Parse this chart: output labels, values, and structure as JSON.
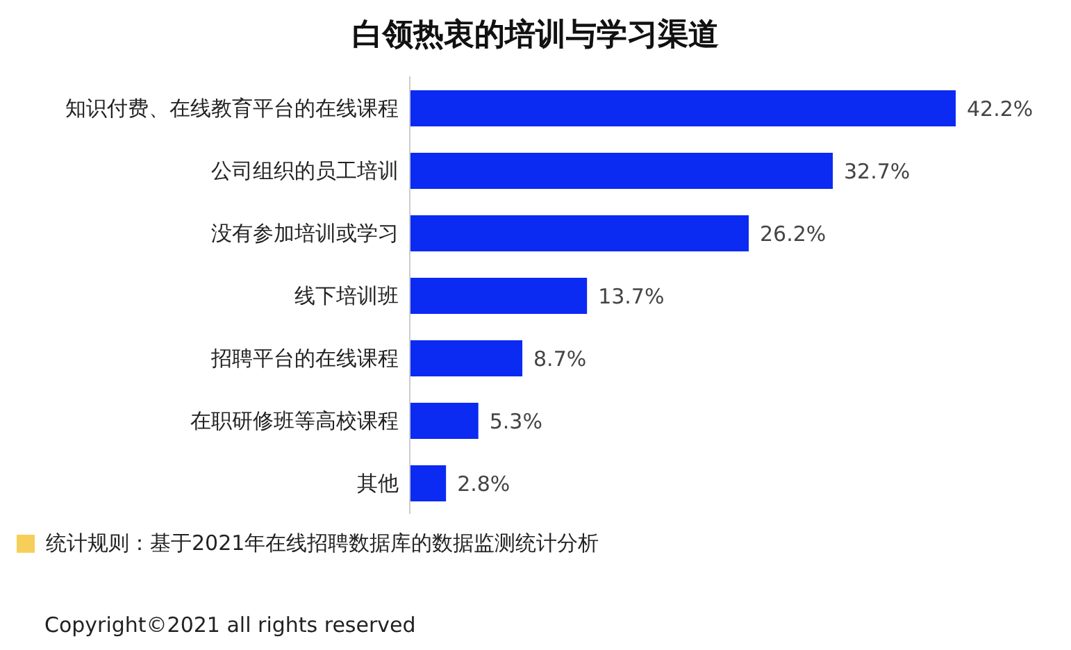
{
  "chart_data": {
    "type": "bar",
    "orientation": "horizontal",
    "title": "白领热衷的培训与学习渠道",
    "categories": [
      "知识付费、在线教育平台的在线课程",
      "公司组织的员工培训",
      "没有参加培训或学习",
      "线下培训班",
      "招聘平台的在线课程",
      "在职研修班等高校课程",
      "其他"
    ],
    "values": [
      42.2,
      32.7,
      26.2,
      13.7,
      8.7,
      5.3,
      2.8
    ],
    "value_labels": [
      "42.2%",
      "32.7%",
      "26.2%",
      "13.7%",
      "8.7%",
      "5.3%",
      "2.8%"
    ],
    "color": "#0b2af2",
    "grid": false,
    "annotations": [
      "统计规则：基于2021年在线招聘数据库的数据监测统计分析",
      "Copyright©2021 all rights reserved"
    ]
  }
}
